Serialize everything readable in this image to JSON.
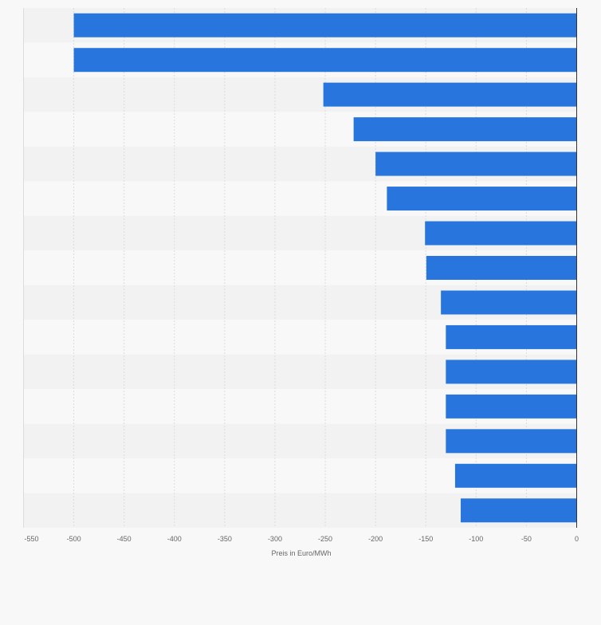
{
  "chart_data": {
    "type": "bar",
    "orientation": "horizontal",
    "xlabel": "Preis in Euro/MWh",
    "ylabel": "",
    "xlim": [
      -550,
      0
    ],
    "xticks": [
      -550,
      -500,
      -450,
      -400,
      -350,
      -300,
      -250,
      -200,
      -150,
      -100,
      -50,
      0
    ],
    "values": [
      -500,
      -500,
      -251.9,
      -221.8,
      -200,
      -188.7,
      -150.8,
      -149.5,
      -135,
      -130.1,
      -130.1,
      -130.1,
      -130.1,
      -120.9,
      -115.3
    ],
    "grid": true,
    "legend": "none",
    "colors": {
      "bar": "#2876dd",
      "band_dark": "#f2f2f2",
      "band_light": "#f8f8f8",
      "grid": "#dcdcdc",
      "axis": "#333333",
      "tick_label": "#666666"
    }
  }
}
